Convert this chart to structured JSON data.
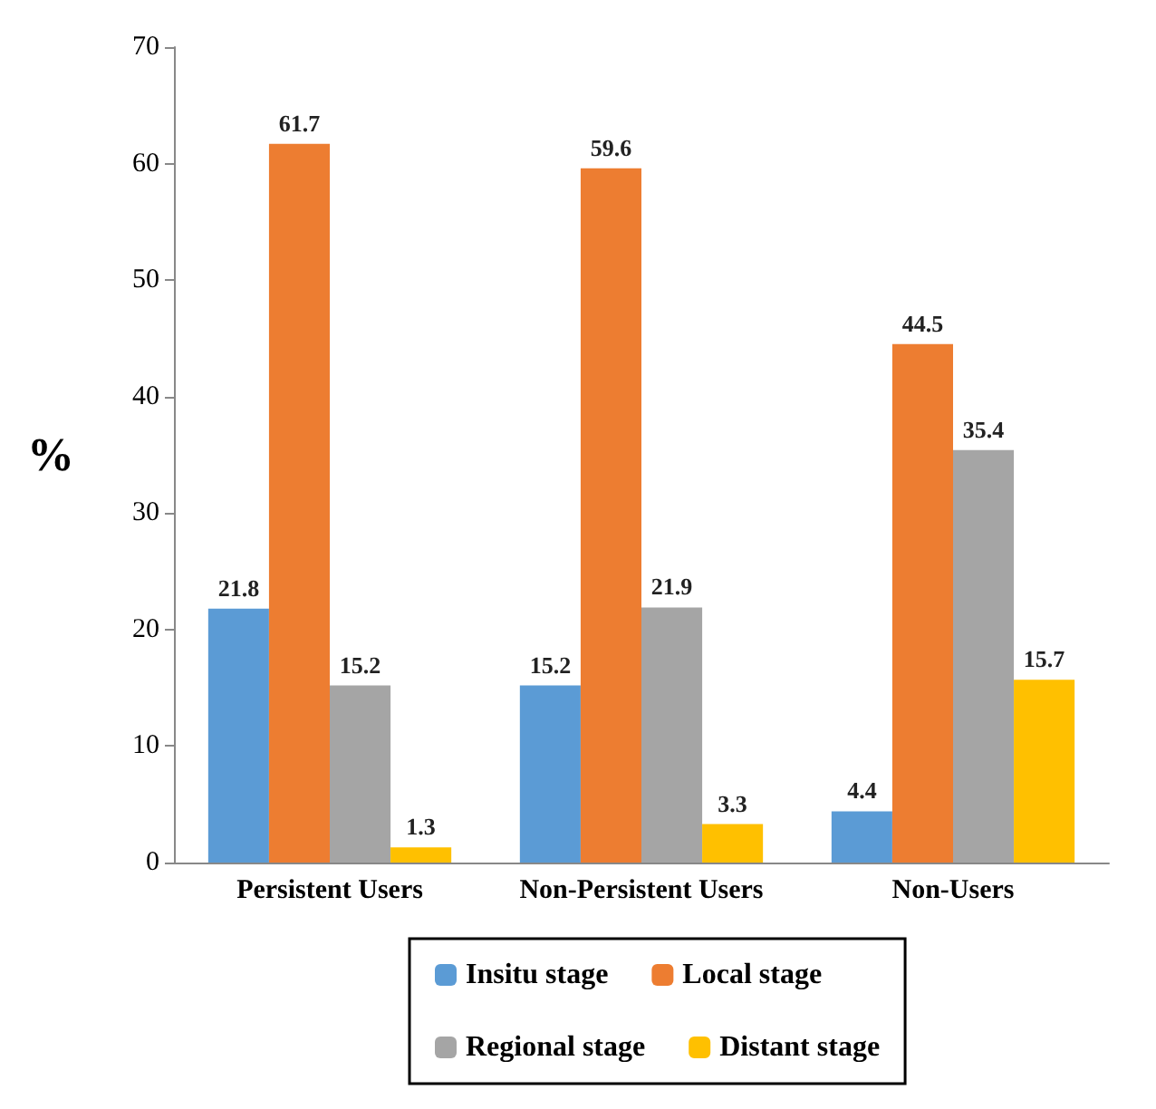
{
  "chart_data": {
    "type": "bar",
    "ylabel": "%",
    "categories": [
      "Persistent Users",
      "Non-Persistent Users",
      "Non-Users"
    ],
    "series": [
      {
        "name": "Insitu stage",
        "color": "#5b9bd5",
        "values": [
          21.8,
          15.2,
          4.4
        ]
      },
      {
        "name": "Local stage",
        "color": "#ed7d31",
        "values": [
          61.7,
          59.6,
          44.5
        ]
      },
      {
        "name": "Regional stage",
        "color": "#a5a5a5",
        "values": [
          15.2,
          21.9,
          35.4
        ]
      },
      {
        "name": "Distant stage",
        "color": "#ffc000",
        "values": [
          1.3,
          3.3,
          15.7
        ]
      }
    ],
    "ylim": [
      0,
      70
    ],
    "yticks": [
      0,
      10,
      20,
      30,
      40,
      50,
      60,
      70
    ],
    "data_labels": true,
    "grid": false,
    "legend": "bottom"
  }
}
